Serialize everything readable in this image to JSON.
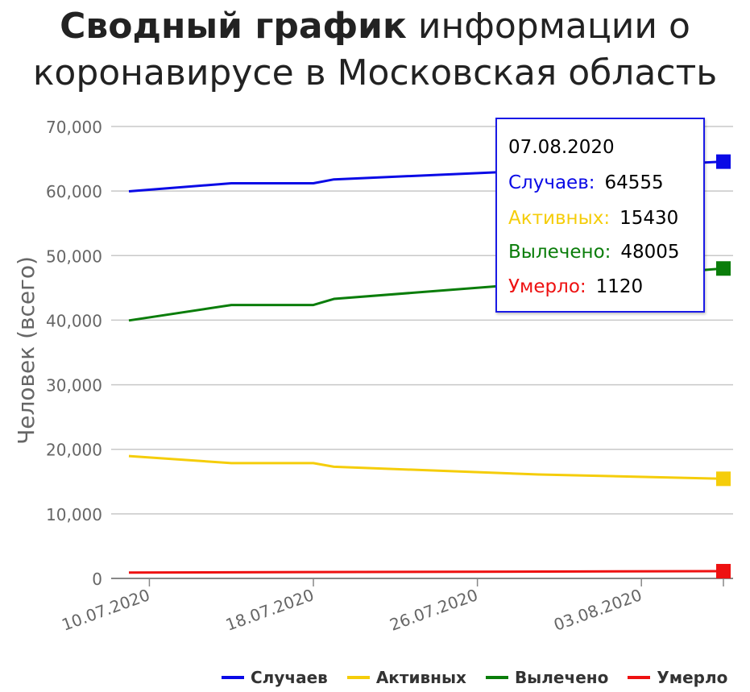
{
  "title": {
    "bold": "Сводный график",
    "rest": "информации о коронавирусе в Московская область"
  },
  "chart_data": {
    "type": "line",
    "ylabel": "Человек (всего)",
    "xlabel": "",
    "ylim": [
      0,
      70000
    ],
    "y_ticks": [
      "0",
      "10,000",
      "20,000",
      "30,000",
      "40,000",
      "50,000",
      "60,000",
      "70,000"
    ],
    "y_tick_values": [
      0,
      10000,
      20000,
      30000,
      40000,
      50000,
      60000,
      70000
    ],
    "x_tick_labels": [
      "10.07.2020",
      "18.07.2020",
      "26.07.2020",
      "03.08.2020"
    ],
    "x_tick_days": [
      1,
      9,
      17,
      25
    ],
    "x_range_days": [
      0,
      29
    ],
    "grid": true,
    "legend_position": "bottom",
    "series": [
      {
        "name": "Случаев",
        "color": "#0a0ae6",
        "x_days": [
          0,
          5,
          9,
          10,
          20,
          29
        ],
        "values": [
          59950,
          61200,
          61200,
          61800,
          63200,
          64555
        ]
      },
      {
        "name": "Активных",
        "color": "#f5cd0a",
        "x_days": [
          0,
          5,
          9,
          10,
          20,
          29
        ],
        "values": [
          18950,
          17850,
          17850,
          17300,
          16100,
          15430
        ]
      },
      {
        "name": "Вылечено",
        "color": "#0a7d0a",
        "x_days": [
          0,
          5,
          9,
          10,
          20,
          29
        ],
        "values": [
          39950,
          42350,
          42350,
          43300,
          45750,
          48005
        ]
      },
      {
        "name": "Умерло",
        "color": "#ee1111",
        "x_days": [
          0,
          9,
          29
        ],
        "values": [
          900,
          980,
          1120
        ]
      }
    ],
    "tooltip": {
      "date": "07.08.2020",
      "rows": [
        {
          "label": "Случаев:",
          "value": "64555",
          "color": "#0a0ae6"
        },
        {
          "label": "Активных:",
          "value": "15430",
          "color": "#f5cd0a"
        },
        {
          "label": "Вылечено:",
          "value": "48005",
          "color": "#0a7d0a"
        },
        {
          "label": "Умерло:",
          "value": "1120",
          "color": "#ee1111"
        }
      ]
    }
  }
}
